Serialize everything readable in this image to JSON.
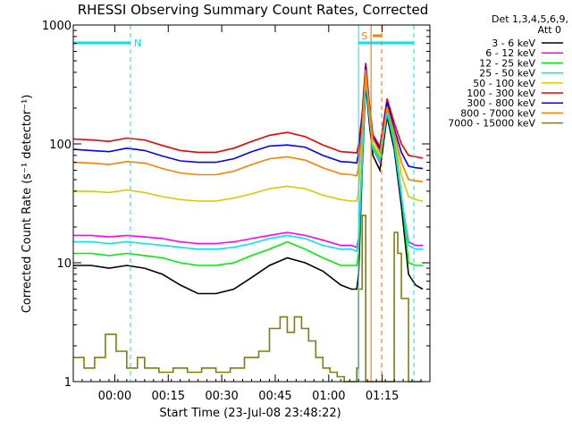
{
  "chart_data": {
    "type": "line",
    "title": "RHESSI Observing Summary Count Rates, Corrected",
    "xlabel": "Start Time (23-Jul-08 23:48:22)",
    "ylabel": "Corrected Count Rate (s⁻¹ detector⁻¹)",
    "y_scale": "log",
    "ylim": [
      1,
      1000
    ],
    "xlim_minutes_from_start": [
      0,
      100
    ],
    "x_ticks": [
      {
        "label": "00:00",
        "minute": 11.63
      },
      {
        "label": "00:15",
        "minute": 26.63
      },
      {
        "label": "00:30",
        "minute": 41.63
      },
      {
        "label": "00:45",
        "minute": 56.63
      },
      {
        "label": "01:00",
        "minute": 71.63
      },
      {
        "label": "01:15",
        "minute": 86.63
      }
    ],
    "y_ticks": [
      {
        "label": "1",
        "value": 1
      },
      {
        "label": "10",
        "value": 10
      },
      {
        "label": "100",
        "value": 100
      },
      {
        "label": "1000",
        "value": 1000
      }
    ],
    "legend": {
      "placement": "right",
      "header_line1": "Det 1,3,4,5,6,9,",
      "header_line2": "Att 0",
      "entries": [
        {
          "label": "3 - 6 keV",
          "color": "#000000"
        },
        {
          "label": "6 - 12 keV",
          "color": "#ff00ff"
        },
        {
          "label": "12 - 25 keV",
          "color": "#00ee00"
        },
        {
          "label": "25 - 50 keV",
          "color": "#00e5ee"
        },
        {
          "label": "50 - 100 keV",
          "color": "#d4cc00"
        },
        {
          "label": "100 - 300 keV",
          "color": "#ee0000"
        },
        {
          "label": "300 - 800 keV",
          "color": "#0000ff"
        },
        {
          "label": "800 - 7000 keV",
          "color": "#ff7f00"
        },
        {
          "label": "7000 - 15000 keV",
          "color": "#808000"
        }
      ]
    },
    "annotations": {
      "night_label": "N",
      "saa_label": "S",
      "night_interval_minutes": [
        0,
        16
      ],
      "saa_interval_minutes": [
        80,
        95.5
      ],
      "flag_color": "#00e5ee",
      "saa_color": "#ff7f00",
      "flare_marker_minutes": [
        83.5,
        86.5
      ],
      "flare_bar_minutes": [
        84,
        86.5
      ],
      "attenuator_state_label": "Att 0"
    },
    "series": [
      {
        "name": "3 - 6 keV",
        "color": "#000000",
        "x": [
          0,
          5,
          10,
          15,
          20,
          25,
          30,
          35,
          40,
          45,
          50,
          55,
          60,
          65,
          70,
          75,
          78,
          79.5,
          80,
          81,
          82,
          83,
          84,
          86,
          88,
          90,
          92,
          94,
          96,
          98
        ],
        "y": [
          9.5,
          9.5,
          9.0,
          9.5,
          9.0,
          8.0,
          6.5,
          5.5,
          5.5,
          6.0,
          7.5,
          9.5,
          11,
          10,
          8.5,
          6.5,
          6.0,
          6.0,
          8,
          60,
          320,
          150,
          80,
          60,
          170,
          90,
          30,
          8,
          6.5,
          6.0
        ]
      },
      {
        "name": "6 - 12 keV",
        "color": "#ff00ff",
        "x": [
          0,
          5,
          10,
          15,
          20,
          25,
          30,
          35,
          40,
          45,
          50,
          55,
          60,
          65,
          70,
          75,
          78,
          79.5,
          80,
          81,
          82,
          83,
          84,
          86,
          88,
          90,
          92,
          94,
          96,
          98
        ],
        "y": [
          17,
          17,
          16.5,
          17,
          16.5,
          16,
          15,
          14.5,
          14.5,
          15,
          16,
          17,
          18,
          17,
          15.5,
          14,
          14,
          13.5,
          16,
          75,
          370,
          170,
          90,
          70,
          190,
          100,
          35,
          15,
          14,
          14
        ]
      },
      {
        "name": "12 - 25 keV",
        "color": "#00ee00",
        "x": [
          0,
          5,
          10,
          15,
          20,
          25,
          30,
          35,
          40,
          45,
          50,
          55,
          60,
          65,
          70,
          75,
          78,
          79.5,
          80,
          81,
          82,
          83,
          84,
          86,
          88,
          90,
          92,
          94,
          96,
          98
        ],
        "y": [
          12,
          12,
          11.5,
          12,
          11.5,
          11,
          10,
          9.5,
          9.5,
          10,
          11.5,
          13,
          15,
          13,
          11,
          9.5,
          9.5,
          9.5,
          12,
          70,
          380,
          180,
          95,
          75,
          200,
          110,
          38,
          10,
          9.5,
          9.5
        ]
      },
      {
        "name": "25 - 50 keV",
        "color": "#00e5ee",
        "x": [
          0,
          5,
          10,
          15,
          20,
          25,
          30,
          35,
          40,
          45,
          50,
          55,
          60,
          65,
          70,
          75,
          78,
          79.5,
          80,
          81,
          82,
          83,
          84,
          86,
          88,
          90,
          92,
          94,
          96,
          98
        ],
        "y": [
          15,
          15,
          14.5,
          15,
          14.5,
          14,
          13.5,
          13,
          13,
          13.5,
          14.5,
          16,
          17,
          16,
          14,
          13,
          13,
          12.5,
          15,
          75,
          360,
          170,
          90,
          72,
          185,
          100,
          36,
          14,
          13,
          13
        ]
      },
      {
        "name": "50 - 100 keV",
        "color": "#d4cc00",
        "x": [
          0,
          5,
          10,
          15,
          20,
          25,
          30,
          35,
          40,
          45,
          50,
          55,
          60,
          65,
          70,
          75,
          78,
          79.5,
          80,
          81,
          82,
          83,
          84,
          86,
          88,
          90,
          92,
          94,
          96,
          98
        ],
        "y": [
          40,
          40,
          39,
          41,
          39,
          36,
          34,
          33,
          33,
          35,
          38,
          42,
          44,
          42,
          37,
          34,
          33,
          33,
          40,
          120,
          400,
          190,
          100,
          80,
          210,
          120,
          55,
          36,
          34,
          33
        ]
      },
      {
        "name": "100 - 300 keV",
        "color": "#ee0000",
        "x": [
          0,
          5,
          10,
          15,
          20,
          25,
          30,
          35,
          40,
          45,
          50,
          55,
          60,
          65,
          70,
          75,
          78,
          79.5,
          80,
          81,
          82,
          83,
          84,
          86,
          88,
          90,
          92,
          94,
          96,
          98
        ],
        "y": [
          110,
          108,
          105,
          112,
          108,
          97,
          88,
          85,
          85,
          92,
          105,
          118,
          125,
          115,
          98,
          86,
          85,
          84,
          100,
          180,
          480,
          220,
          120,
          95,
          240,
          150,
          100,
          80,
          78,
          76
        ]
      },
      {
        "name": "300 - 800 keV",
        "color": "#0000ff",
        "x": [
          0,
          5,
          10,
          15,
          20,
          25,
          30,
          35,
          40,
          45,
          50,
          55,
          60,
          65,
          70,
          75,
          78,
          79.5,
          80,
          81,
          82,
          83,
          84,
          86,
          88,
          90,
          92,
          94,
          96,
          98
        ],
        "y": [
          90,
          88,
          86,
          92,
          88,
          79,
          72,
          70,
          70,
          75,
          86,
          96,
          98,
          94,
          80,
          71,
          70,
          69,
          85,
          160,
          450,
          210,
          115,
          90,
          225,
          135,
          85,
          65,
          63,
          62
        ]
      },
      {
        "name": "800 - 7000 keV",
        "color": "#ff7f00",
        "x": [
          0,
          5,
          10,
          15,
          20,
          25,
          30,
          35,
          40,
          45,
          50,
          55,
          60,
          65,
          70,
          75,
          78,
          79.5,
          80,
          81,
          82,
          83,
          84,
          86,
          88,
          90,
          92,
          94,
          96,
          98
        ],
        "y": [
          70,
          69,
          67,
          71,
          69,
          62,
          57,
          55,
          55,
          59,
          67,
          75,
          78,
          73,
          63,
          56,
          55,
          54,
          65,
          140,
          420,
          200,
          110,
          85,
          205,
          125,
          70,
          50,
          49,
          48
        ]
      },
      {
        "name": "7000 - 15000 keV",
        "color": "#808000",
        "x": [
          0,
          3,
          6,
          9,
          12,
          15,
          18,
          20,
          24,
          28,
          32,
          36,
          40,
          44,
          48,
          52,
          55,
          58,
          60,
          62,
          64,
          66,
          68,
          70,
          72,
          74,
          76,
          78,
          79.5,
          80,
          81,
          82,
          83,
          84,
          85,
          86,
          88,
          90,
          91,
          92,
          94,
          96,
          98
        ],
        "y": [
          1.6,
          1.3,
          1.6,
          2.5,
          1.8,
          1.3,
          1.6,
          1.3,
          1.2,
          1.3,
          1.2,
          1.3,
          1.2,
          1.3,
          1.6,
          1.8,
          2.8,
          3.5,
          2.6,
          3.5,
          2.8,
          2.2,
          1.6,
          1.3,
          1.2,
          1.1,
          1.0,
          1.0,
          1.3,
          6,
          25,
          1.0,
          1.0,
          1.0,
          1.0,
          1.0,
          1.0,
          18,
          12,
          5,
          1.0,
          1.0,
          1.0
        ]
      }
    ]
  }
}
